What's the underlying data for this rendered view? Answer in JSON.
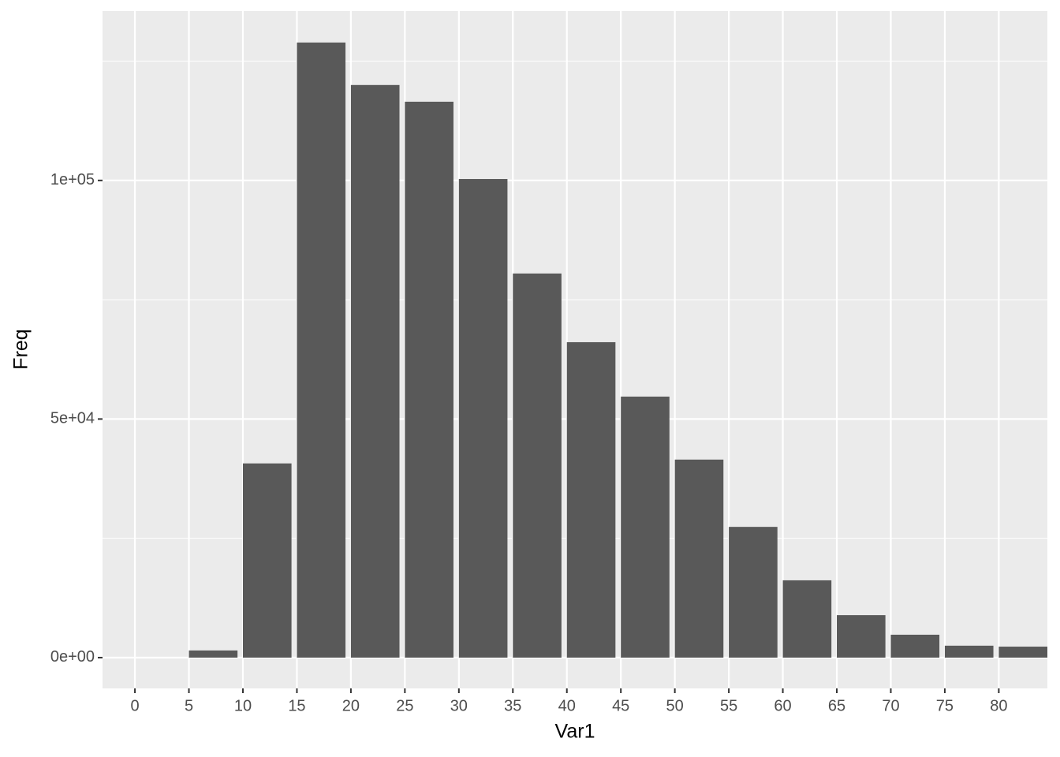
{
  "chart_data": {
    "type": "histogram",
    "x_label": "Var1",
    "y_label": "Freq",
    "bins": [
      5,
      10,
      15,
      20,
      25,
      30,
      35,
      40,
      45,
      50,
      55,
      60,
      65,
      70,
      75,
      80,
      85
    ],
    "values": [
      1500,
      40700,
      128900,
      120000,
      116500,
      100300,
      80500,
      66100,
      54700,
      41500,
      27400,
      16200,
      8900,
      4800,
      2500,
      2300
    ],
    "color": "#595959",
    "xlim": [
      -3,
      84.5
    ],
    "xticks": [
      0,
      5,
      10,
      15,
      20,
      25,
      30,
      35,
      40,
      45,
      50,
      55,
      60,
      65,
      70,
      75,
      80
    ],
    "ylim": [
      -6450,
      135500
    ],
    "yticks": [
      {
        "value": 0,
        "label": "0e+00"
      },
      {
        "value": 50000,
        "label": "5e+04"
      },
      {
        "value": 100000,
        "label": "1e+05"
      }
    ],
    "grid": true
  }
}
